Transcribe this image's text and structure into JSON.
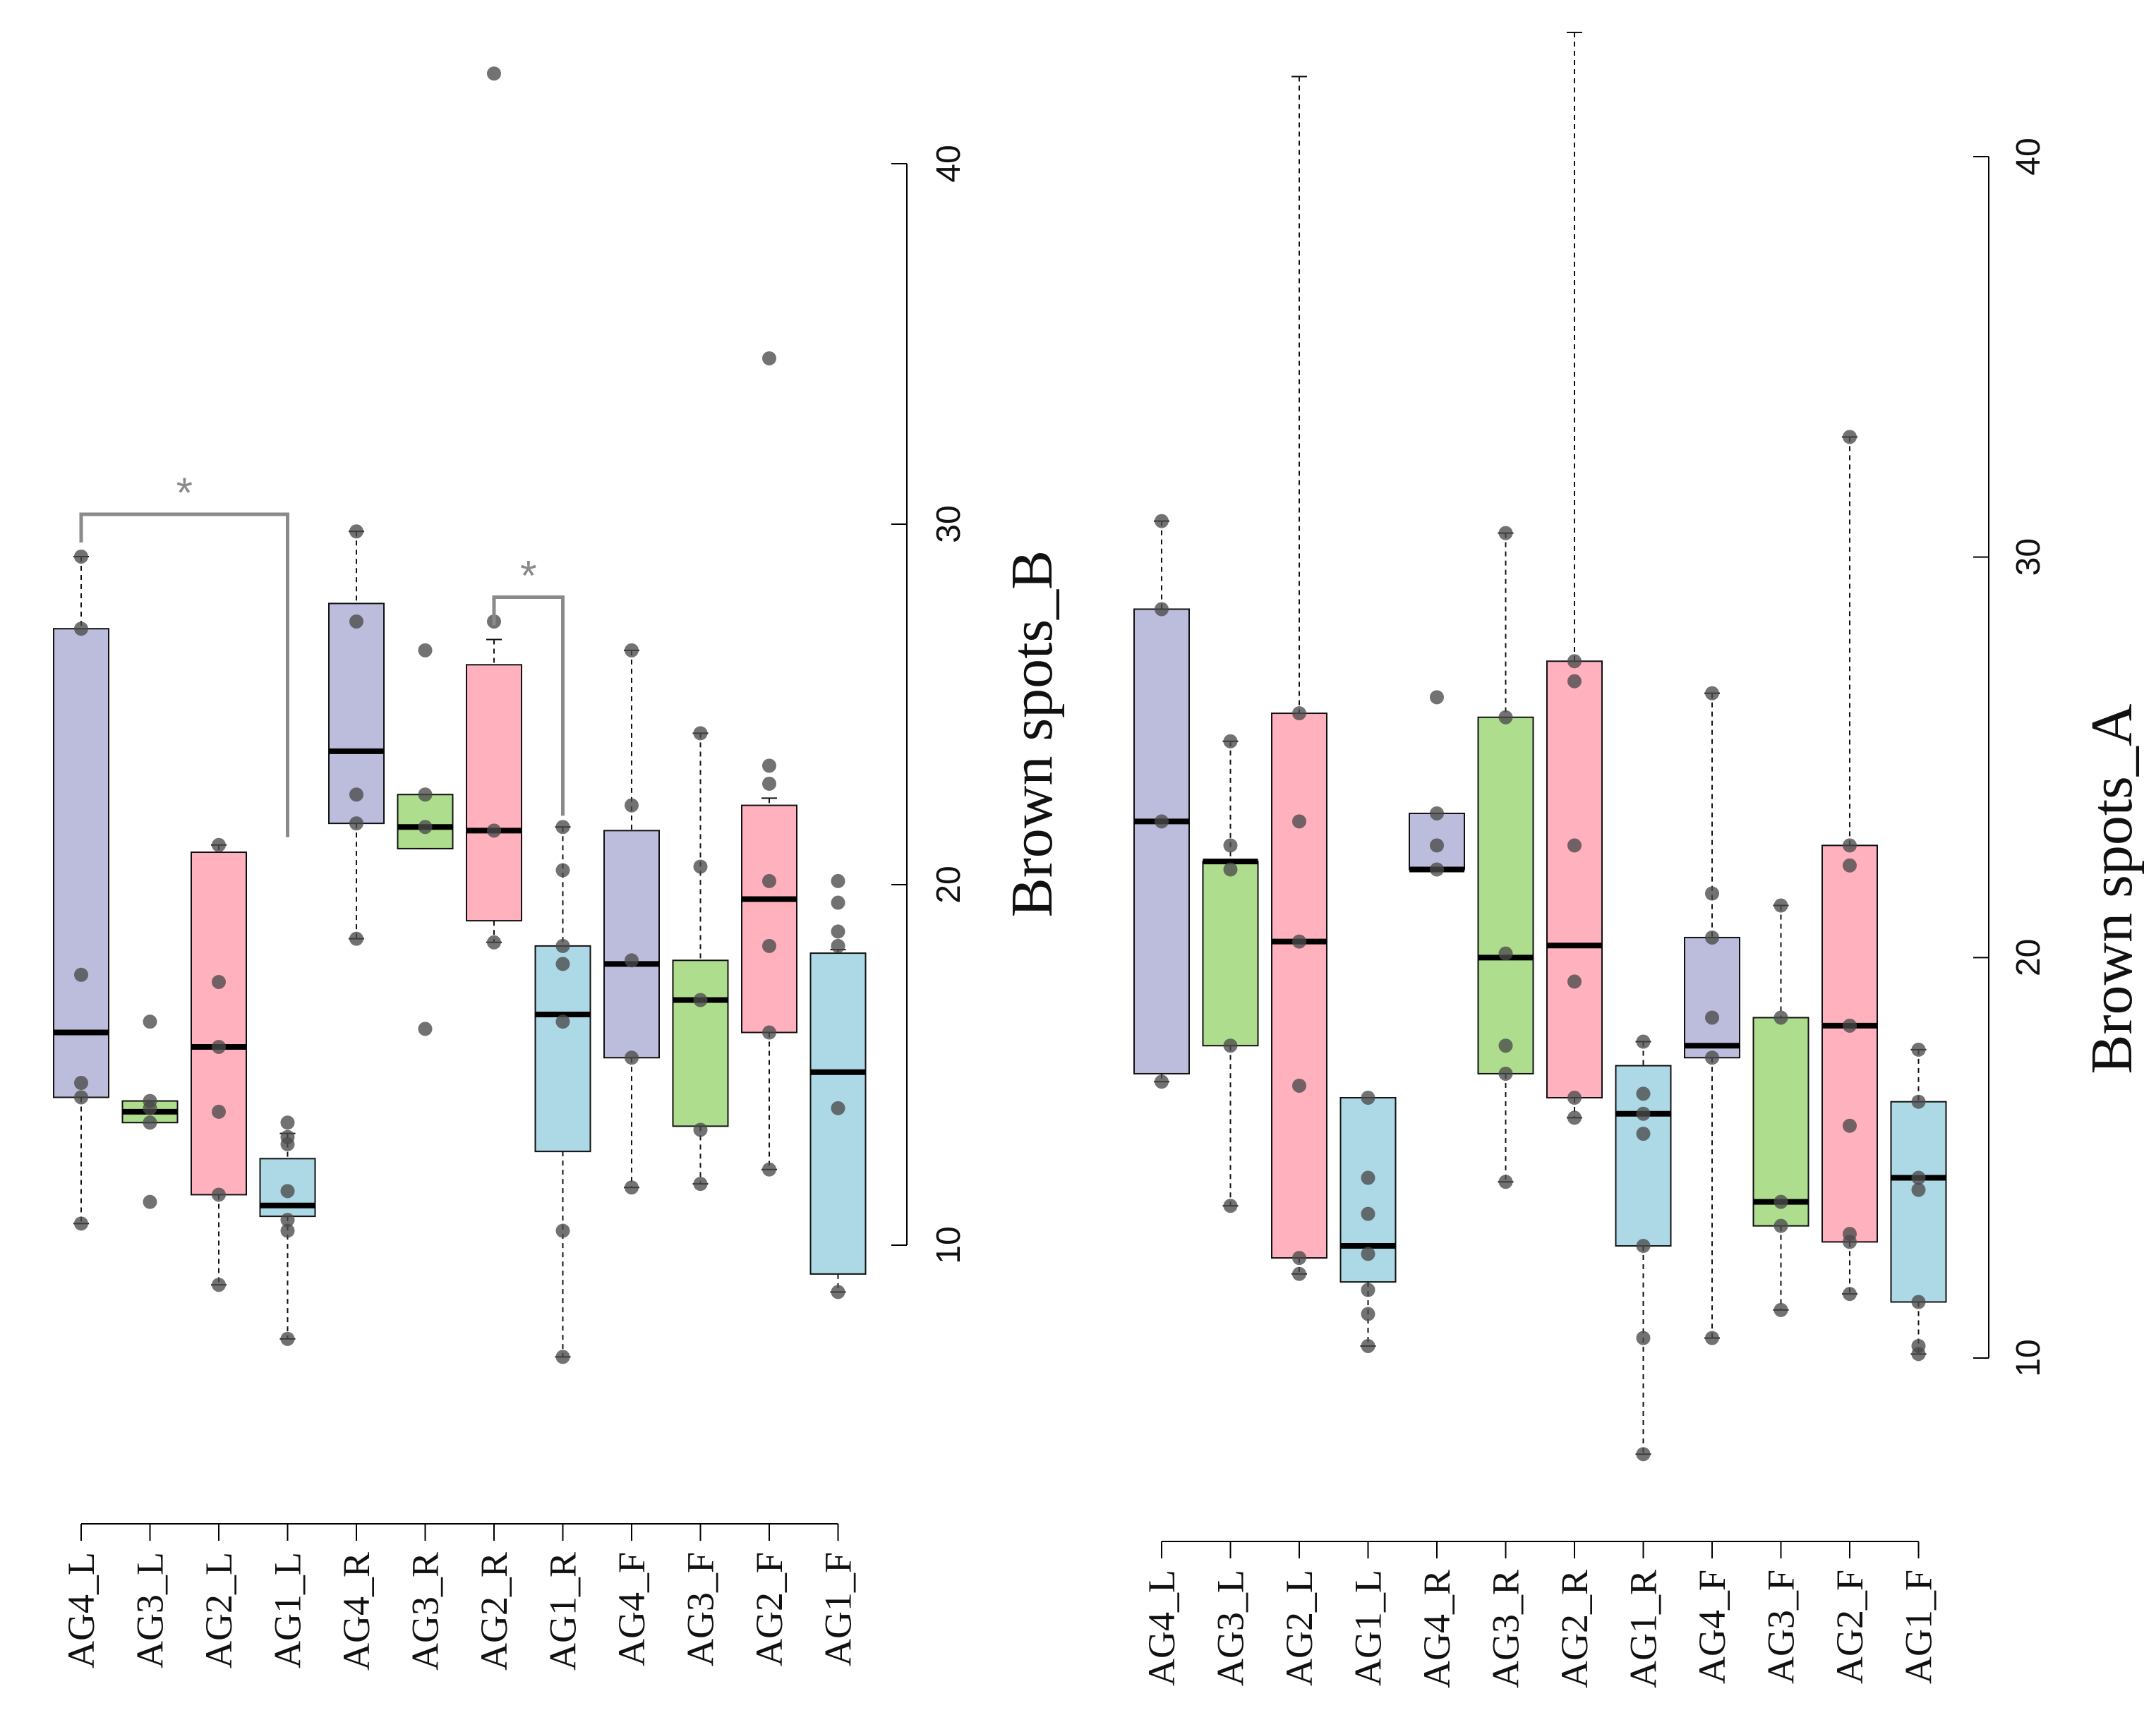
{
  "chart_data": [
    {
      "type": "box",
      "name": "Brown spots_B",
      "ylabel": "Brown spots_B",
      "ylim": [
        10,
        40
      ],
      "yticks": [
        10,
        20,
        30,
        40
      ],
      "categories": [
        "AG4_L",
        "AG3_L",
        "AG2_L",
        "AG1_L",
        "AG4_R",
        "AG3_R",
        "AG2_R",
        "AG1_R",
        "AG4_F",
        "AG3_F",
        "AG2_F",
        "AG1_F"
      ],
      "colors": [
        "#bcbcdc",
        "#aedd8e",
        "#ffb1bd",
        "#add8e6",
        "#bcbcdc",
        "#aedd8e",
        "#ffb1bd",
        "#add8e6",
        "#bcbcdc",
        "#aedd8e",
        "#ffb1bd",
        "#add8e6"
      ],
      "stats": [
        {
          "min": 10.6,
          "q1": 14.1,
          "median": 15.9,
          "q3": 27.1,
          "max": 29.1
        },
        {
          "min": 13.4,
          "q1": 13.4,
          "median": 13.7,
          "q3": 14.0,
          "max": 14.0
        },
        {
          "min": 8.9,
          "q1": 11.4,
          "median": 15.5,
          "q3": 20.9,
          "max": 21.1
        },
        {
          "min": 7.4,
          "q1": 10.8,
          "median": 11.1,
          "q3": 12.4,
          "max": 13.1
        },
        {
          "min": 18.5,
          "q1": 21.7,
          "median": 23.7,
          "q3": 27.8,
          "max": 29.8
        },
        {
          "min": 21.0,
          "q1": 21.0,
          "median": 21.6,
          "q3": 22.5,
          "max": 22.5
        },
        {
          "min": 18.4,
          "q1": 19.0,
          "median": 21.5,
          "q3": 26.1,
          "max": 26.8
        },
        {
          "min": 6.9,
          "q1": 12.6,
          "median": 16.4,
          "q3": 18.3,
          "max": 21.6
        },
        {
          "min": 11.6,
          "q1": 15.2,
          "median": 17.8,
          "q3": 21.5,
          "max": 26.5
        },
        {
          "min": 11.7,
          "q1": 13.3,
          "median": 16.8,
          "q3": 17.9,
          "max": 24.2
        },
        {
          "min": 12.1,
          "q1": 15.9,
          "median": 19.6,
          "q3": 22.2,
          "max": 22.4
        },
        {
          "min": 8.7,
          "q1": 9.2,
          "median": 14.8,
          "q3": 18.1,
          "max": 18.2
        }
      ],
      "points": [
        [
          10.6,
          14.1,
          14.5,
          17.5,
          27.1,
          29.1
        ],
        [
          11.2,
          13.4,
          13.8,
          14.0,
          16.2
        ],
        [
          8.9,
          11.4,
          13.7,
          15.5,
          17.3,
          21.1
        ],
        [
          7.4,
          10.4,
          10.7,
          11.5,
          12.8,
          13.0,
          13.4
        ],
        [
          18.5,
          21.7,
          22.5,
          27.3,
          29.8
        ],
        [
          16.0,
          21.6,
          22.5,
          26.5
        ],
        [
          18.4,
          21.5,
          27.3
        ],
        [
          6.9,
          10.4,
          16.2,
          17.8,
          18.3,
          20.4,
          21.6
        ],
        [
          11.6,
          15.2,
          17.9,
          22.2,
          26.5
        ],
        [
          11.7,
          13.2,
          16.8,
          20.5,
          24.2
        ],
        [
          12.1,
          15.9,
          18.3,
          20.1,
          22.8,
          23.3,
          34.6
        ],
        [
          8.7,
          13.8,
          18.3,
          18.7,
          19.5,
          20.1
        ]
      ],
      "outliers": [
        [],
        [],
        [],
        [],
        [],
        [],
        [
          42.5
        ],
        [],
        [],
        [],
        [],
        []
      ],
      "significance": [
        {
          "from": "AG4_L",
          "to": "AG1_L",
          "label": "*"
        },
        {
          "from": "AG2_R",
          "to": "AG1_R",
          "label": "*"
        }
      ]
    },
    {
      "type": "box",
      "name": "Brown spots_A",
      "ylabel": "Brown spots_A",
      "ylim": [
        10,
        40
      ],
      "yticks": [
        10,
        20,
        30,
        40
      ],
      "categories": [
        "AG4_L",
        "AG3_L",
        "AG2_L",
        "AG1_L",
        "AG4_R",
        "AG3_R",
        "AG2_R",
        "AG1_R",
        "AG4_F",
        "AG3_F",
        "AG2_F",
        "AG1_F"
      ],
      "colors": [
        "#bcbcdc",
        "#aedd8e",
        "#ffb1bd",
        "#add8e6",
        "#bcbcdc",
        "#aedd8e",
        "#ffb1bd",
        "#add8e6",
        "#bcbcdc",
        "#aedd8e",
        "#ffb1bd",
        "#add8e6"
      ],
      "stats": [
        {
          "min": 16.9,
          "q1": 17.1,
          "median": 23.4,
          "q3": 28.7,
          "max": 30.9
        },
        {
          "min": 13.8,
          "q1": 17.8,
          "median": 22.4,
          "q3": 22.4,
          "max": 25.4
        },
        {
          "min": 12.1,
          "q1": 12.5,
          "median": 20.4,
          "q3": 26.1,
          "max": 42.0
        },
        {
          "min": 10.3,
          "q1": 11.9,
          "median": 12.8,
          "q3": 16.5,
          "max": 16.5
        },
        {
          "min": 22.2,
          "q1": 22.2,
          "median": 22.2,
          "q3": 23.6,
          "max": 23.6
        },
        {
          "min": 14.4,
          "q1": 17.1,
          "median": 20.0,
          "q3": 26.0,
          "max": 30.6
        },
        {
          "min": 16.0,
          "q1": 16.5,
          "median": 20.3,
          "q3": 27.4,
          "max": 43.1
        },
        {
          "min": 7.6,
          "q1": 12.8,
          "median": 16.1,
          "q3": 17.3,
          "max": 17.9
        },
        {
          "min": 10.5,
          "q1": 17.5,
          "median": 17.8,
          "q3": 20.5,
          "max": 26.6
        },
        {
          "min": 11.2,
          "q1": 13.3,
          "median": 13.9,
          "q3": 18.5,
          "max": 21.3
        },
        {
          "min": 11.6,
          "q1": 12.9,
          "median": 18.3,
          "q3": 22.8,
          "max": 33.0
        },
        {
          "min": 10.1,
          "q1": 11.4,
          "median": 14.5,
          "q3": 16.4,
          "max": 17.7
        }
      ],
      "points": [
        [
          16.9,
          23.4,
          28.7,
          30.9
        ],
        [
          13.8,
          17.8,
          22.2,
          22.8,
          25.4
        ],
        [
          12.1,
          12.5,
          16.8,
          20.4,
          23.4,
          26.1
        ],
        [
          10.3,
          11.1,
          11.7,
          12.6,
          13.6,
          14.5,
          16.5
        ],
        [
          22.2,
          22.8,
          23.6,
          26.5
        ],
        [
          14.4,
          17.1,
          17.8,
          20.1,
          26.0,
          30.6
        ],
        [
          16.0,
          16.5,
          19.4,
          22.8,
          26.9,
          27.4
        ],
        [
          7.6,
          10.5,
          12.8,
          15.6,
          16.1,
          16.6,
          17.9
        ],
        [
          10.5,
          17.5,
          18.5,
          20.5,
          21.6,
          26.6
        ],
        [
          11.2,
          13.3,
          13.9,
          18.5,
          21.3
        ],
        [
          11.6,
          12.9,
          13.1,
          15.8,
          18.3,
          22.3,
          22.8,
          33.0
        ],
        [
          10.1,
          10.3,
          11.4,
          14.2,
          14.5,
          16.4,
          17.7
        ]
      ],
      "outliers": [
        [],
        [],
        [],
        [],
        [],
        [],
        [],
        [],
        [],
        [],
        [],
        []
      ],
      "significance": []
    }
  ]
}
